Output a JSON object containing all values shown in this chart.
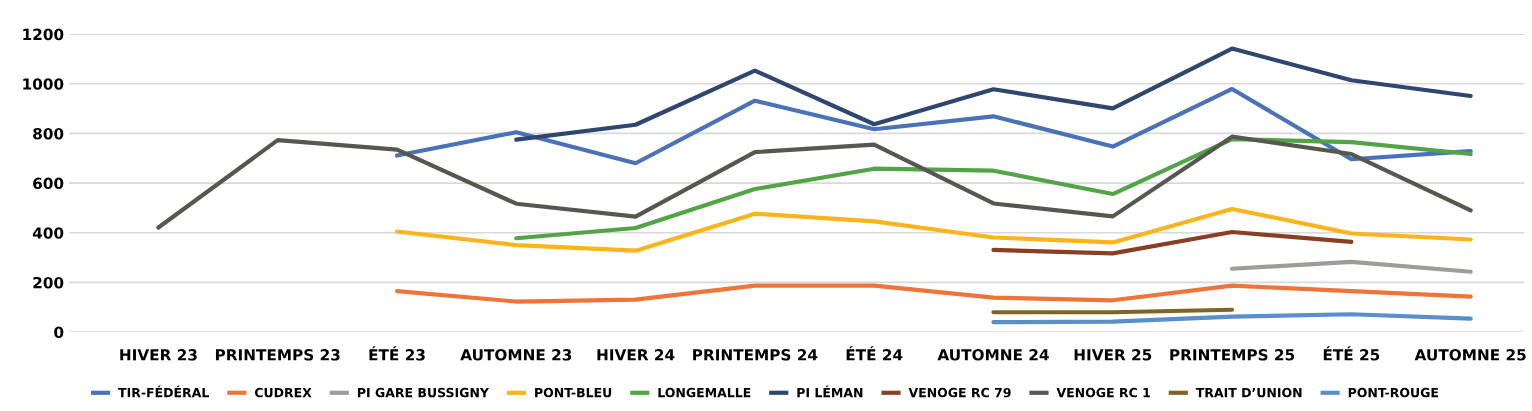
{
  "chart_data": {
    "type": "line",
    "categories": [
      "HIVER 23",
      "PRINTEMPS 23",
      "ÉTÉ 23",
      "AUTOMNE 23",
      "HIVER 24",
      "PRINTEMPS 24",
      "ÉTÉ 24",
      "AUTOMNE 24",
      "HIVER 25",
      "PRINTEMPS 25",
      "ÉTÉ 25",
      "AUTOMNE 25"
    ],
    "series": [
      {
        "name": "TIR-FÉDÉRAL",
        "color": "#4a72b8",
        "values": [
          null,
          null,
          711,
          805,
          680,
          932,
          817,
          869,
          747,
          979,
          696,
          729
        ]
      },
      {
        "name": "CUDREX",
        "color": "#ed7539",
        "values": [
          null,
          null,
          165,
          123,
          131,
          187,
          187,
          139,
          128,
          187,
          165,
          143
        ]
      },
      {
        "name": "PI GARE BUSSIGNY",
        "color": "#9c9c98",
        "values": [
          null,
          null,
          null,
          null,
          null,
          null,
          null,
          null,
          null,
          255,
          283,
          243
        ]
      },
      {
        "name": "PONT-BLEU",
        "color": "#fbb41c",
        "values": [
          null,
          null,
          405,
          350,
          328,
          477,
          446,
          381,
          361,
          496,
          397,
          373
        ]
      },
      {
        "name": "LONGEMALLE",
        "color": "#52a447",
        "values": [
          null,
          null,
          null,
          378,
          419,
          576,
          658,
          650,
          556,
          777,
          765,
          717
        ]
      },
      {
        "name": "PI LÉMAN",
        "color": "#2f4670",
        "values": [
          null,
          null,
          null,
          775,
          835,
          1053,
          837,
          978,
          901,
          1142,
          1014,
          951
        ]
      },
      {
        "name": "VENOGE RC 79",
        "color": "#8a3f22",
        "values": [
          null,
          null,
          null,
          null,
          null,
          null,
          null,
          331,
          317,
          403,
          363,
          null
        ]
      },
      {
        "name": "VENOGE RC 1",
        "color": "#575752",
        "values": [
          421,
          773,
          735,
          517,
          465,
          725,
          755,
          518,
          466,
          787,
          717,
          490
        ]
      },
      {
        "name": "TRAIT D’UNION",
        "color": "#7f6424",
        "values": [
          null,
          null,
          null,
          null,
          null,
          null,
          null,
          80,
          80,
          90,
          null,
          null
        ]
      },
      {
        "name": "PONT-ROUGE",
        "color": "#5b8fc9",
        "values": [
          null,
          null,
          null,
          null,
          null,
          null,
          null,
          40,
          42,
          62,
          72,
          54
        ]
      }
    ],
    "ylim": [
      0,
      1200
    ],
    "yticks": [
      0,
      200,
      400,
      600,
      800,
      1000,
      1200
    ],
    "grid": "y",
    "legend": "bottom",
    "marker": "none",
    "line_style": "solid"
  }
}
